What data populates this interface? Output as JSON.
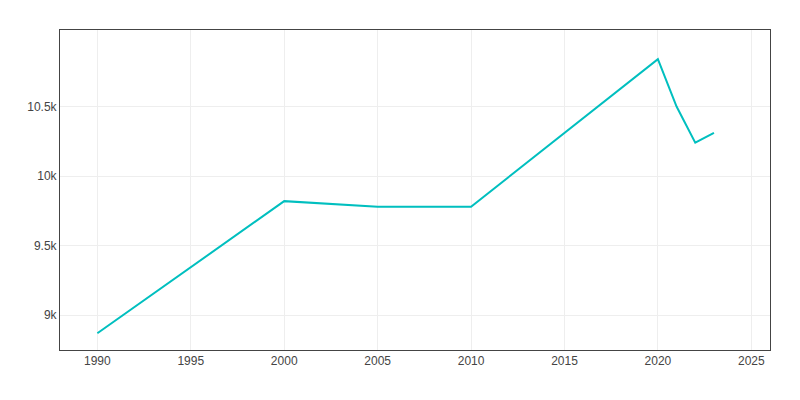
{
  "chart_data": {
    "type": "line",
    "x": [
      1990,
      2000,
      2005,
      2010,
      2020,
      2021,
      2022,
      2023
    ],
    "values": [
      8870,
      9820,
      9780,
      9780,
      10840,
      10500,
      10240,
      10310
    ],
    "color": "#00BFBF",
    "xlim": [
      1988,
      2026
    ],
    "xticks": [
      1990,
      1995,
      2000,
      2005,
      2010,
      2015,
      2020,
      2025
    ],
    "ylim": [
      8750,
      11050
    ],
    "yticks": [
      {
        "value": 9000,
        "label": "9k"
      },
      {
        "value": 9500,
        "label": "9.5k"
      },
      {
        "value": 10000,
        "label": "10k"
      },
      {
        "value": 10500,
        "label": "10.5k"
      }
    ],
    "grid": true
  }
}
